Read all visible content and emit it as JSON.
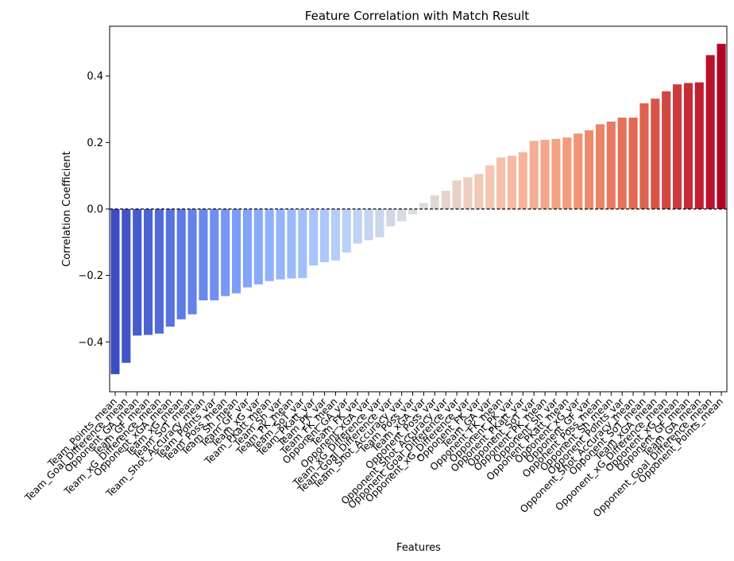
{
  "chart_data": {
    "type": "bar",
    "title": "Feature Correlation with Match Result",
    "xlabel": "Features",
    "ylabel": "Correlation Coefficient",
    "ylim": [
      -0.55,
      0.55
    ],
    "yticks": [
      -0.4,
      -0.2,
      0.0,
      0.2,
      0.4
    ],
    "ytick_labels": [
      "−0.4",
      "−0.2",
      "0.0",
      "0.2",
      "0.4"
    ],
    "reference_line": 0,
    "grid": false,
    "palette": "coolwarm",
    "categories": [
      "Team_Points_mean",
      "Team_Goal_Difference_mean",
      "Opponent_GA_mean",
      "Team_GF_mean",
      "Team_xG_Difference_mean",
      "Opponent_xGA_mean",
      "Team_xG_mean",
      "Team_SoT_mean",
      "Team_Shot_Accuracy_mean",
      "Team_Points_var",
      "Team_Poss_mean",
      "Team_Sh_mean",
      "Team_GF_var",
      "Team_xG_var",
      "Team_PKatt_mean",
      "Team_Sh_var",
      "Team_PK_mean",
      "Team_SoT_var",
      "Team_PKatt_var",
      "Team_PK_var",
      "Team_FK_mean",
      "Opponent_GA_var",
      "Team_FK_var",
      "Opponent_xGA_var",
      "Team_xG_Difference_var",
      "Team_Goal_Difference_var",
      "Team_Shot_Accuracy_var",
      "Team_Poss_var",
      "Team_xGA_var",
      "Opponent_Poss_var",
      "Opponent_Shot_Accuracy_var",
      "Opponent_Goal_Difference_var",
      "Opponent_xG_Difference_var",
      "Opponent_FK_var",
      "Team_GA_var",
      "Opponent_FK_mean",
      "Opponent_PK_var",
      "Opponent_PKatt_var",
      "Opponent_SoT_var",
      "Opponent_PK_mean",
      "Opponent_Sh_var",
      "Opponent_PKatt_mean",
      "Opponent_xG_var",
      "Opponent_GF_var",
      "Opponent_Poss_mean",
      "Opponent_Sh_mean",
      "Opponent_Points_var",
      "Opponent_Shot_Accuracy_mean",
      "Opponent_SoT_mean",
      "Team_xGA_mean",
      "Opponent_xG_Difference_mean",
      "Opponent_xG_mean",
      "Opponent_GF_mean",
      "Team_GA_mean",
      "Opponent_Goal_Difference_mean",
      "Opponent_Points_mean"
    ],
    "values": [
      -0.497,
      -0.463,
      -0.381,
      -0.379,
      -0.375,
      -0.354,
      -0.332,
      -0.317,
      -0.275,
      -0.275,
      -0.262,
      -0.254,
      -0.236,
      -0.227,
      -0.217,
      -0.212,
      -0.209,
      -0.208,
      -0.17,
      -0.16,
      -0.155,
      -0.131,
      -0.104,
      -0.094,
      -0.085,
      -0.052,
      -0.037,
      -0.016,
      0.018,
      0.041,
      0.055,
      0.086,
      0.095,
      0.105,
      0.131,
      0.155,
      0.16,
      0.171,
      0.205,
      0.208,
      0.211,
      0.215,
      0.227,
      0.237,
      0.255,
      0.263,
      0.275,
      0.275,
      0.318,
      0.332,
      0.354,
      0.375,
      0.379,
      0.381,
      0.463,
      0.497
    ]
  }
}
